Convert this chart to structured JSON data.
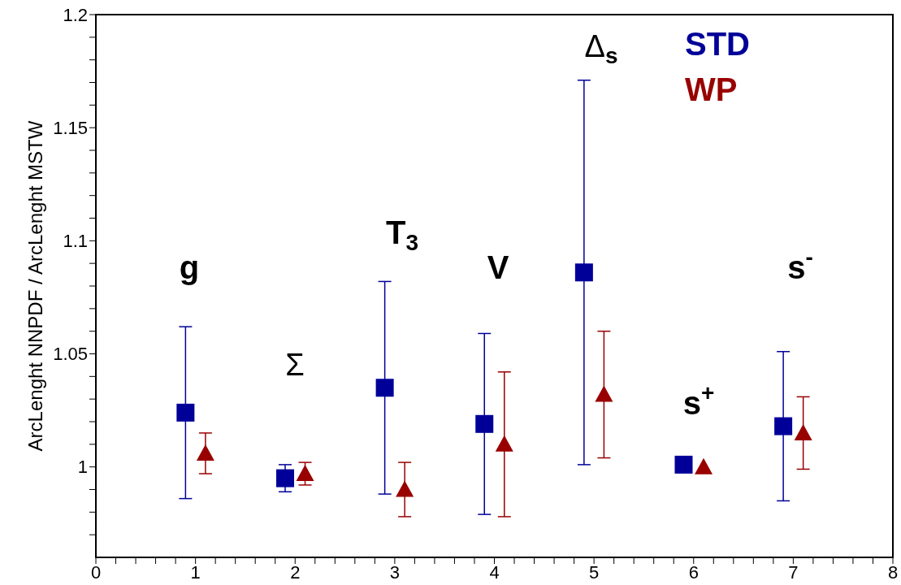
{
  "chart_data": {
    "type": "scatter",
    "ylabel": "ArcLenght NNPDF / ArcLenght MSTW",
    "xlim": [
      0,
      8
    ],
    "xticks": [
      0,
      {
        "value": 0.2,
        "label": null
      },
      {
        "value": 0.4,
        "label": null
      },
      {
        "value": 0.6,
        "label": null
      },
      {
        "value": 0.8,
        "label": null
      },
      1,
      {
        "value": 1.2,
        "label": null
      },
      {
        "value": 1.4,
        "label": null
      },
      {
        "value": 1.6,
        "label": null
      },
      {
        "value": 1.8,
        "label": null
      },
      2,
      {
        "value": 2.2,
        "label": null
      },
      {
        "value": 2.4,
        "label": null
      },
      {
        "value": 2.6,
        "label": null
      },
      {
        "value": 2.8,
        "label": null
      },
      3,
      {
        "value": 3.2,
        "label": null
      },
      {
        "value": 3.4,
        "label": null
      },
      {
        "value": 3.6,
        "label": null
      },
      {
        "value": 3.8,
        "label": null
      },
      4,
      {
        "value": 4.2,
        "label": null
      },
      {
        "value": 4.4,
        "label": null
      },
      {
        "value": 4.6,
        "label": null
      },
      {
        "value": 4.8,
        "label": null
      },
      5,
      {
        "value": 5.2,
        "label": null
      },
      {
        "value": 5.4,
        "label": null
      },
      {
        "value": 5.6,
        "label": null
      },
      {
        "value": 5.8,
        "label": null
      },
      6,
      {
        "value": 6.2,
        "label": null
      },
      {
        "value": 6.4,
        "label": null
      },
      {
        "value": 6.6,
        "label": null
      },
      {
        "value": 6.8,
        "label": null
      },
      7,
      {
        "value": 7.2,
        "label": null
      },
      {
        "value": 7.4,
        "label": null
      },
      {
        "value": 7.6,
        "label": null
      },
      {
        "value": 7.8,
        "label": null
      },
      8
    ],
    "ylim": [
      0.96,
      1.2
    ],
    "yticks": [
      {
        "value": 0.97,
        "label": null
      },
      {
        "value": 0.98,
        "label": null
      },
      {
        "value": 0.99,
        "label": null
      },
      1,
      {
        "value": 1.01,
        "label": null
      },
      {
        "value": 1.02,
        "label": null
      },
      {
        "value": 1.03,
        "label": null
      },
      {
        "value": 1.04,
        "label": null
      },
      1.05,
      {
        "value": 1.06,
        "label": null
      },
      {
        "value": 1.07,
        "label": null
      },
      {
        "value": 1.08,
        "label": null
      },
      {
        "value": 1.09,
        "label": null
      },
      1.1,
      {
        "value": 1.11,
        "label": null
      },
      {
        "value": 1.12,
        "label": null
      },
      {
        "value": 1.13,
        "label": null
      },
      {
        "value": 1.14,
        "label": null
      },
      1.15,
      {
        "value": 1.16,
        "label": null
      },
      {
        "value": 1.17,
        "label": null
      },
      {
        "value": 1.18,
        "label": null
      },
      {
        "value": 1.19,
        "label": null
      },
      1.2
    ],
    "grid": false,
    "legend": "top right",
    "series": [
      {
        "name": "STD",
        "color": "#000099",
        "marker": "square",
        "x": [
          0.9,
          1.9,
          2.9,
          3.9,
          4.9,
          5.9,
          6.9
        ],
        "values": [
          1.024,
          0.995,
          1.035,
          1.019,
          1.086,
          1.001,
          1.018
        ],
        "errors": [
          0.038,
          0.006,
          0.047,
          0.04,
          0.085,
          null,
          0.033
        ]
      },
      {
        "name": "WP",
        "color": "#990000",
        "marker": "triangle",
        "x": [
          1.1,
          2.1,
          3.1,
          4.1,
          5.1,
          6.1,
          7.1
        ],
        "values": [
          1.006,
          0.997,
          0.99,
          1.01,
          1.032,
          1.0,
          1.015
        ],
        "errors": [
          0.009,
          0.005,
          0.012,
          0.032,
          0.028,
          null,
          0.016
        ]
      }
    ],
    "annotations": [
      "g",
      "Σ",
      "T$_{3}$",
      "V",
      "Δ$_{s}$",
      "s$^{+}$",
      "s$^{-}$"
    ]
  }
}
